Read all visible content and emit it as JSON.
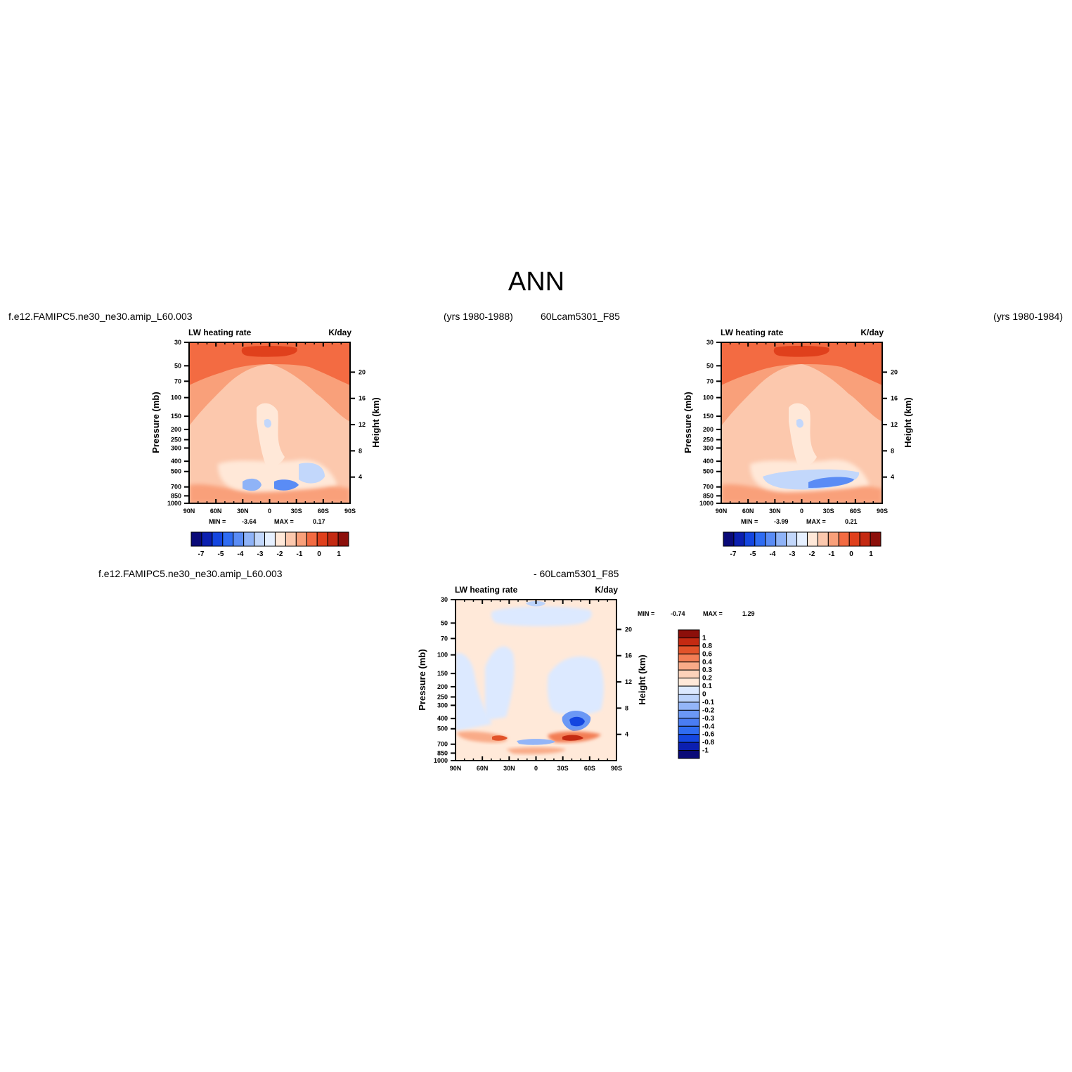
{
  "figure": {
    "season": "ANN",
    "case_titles": {
      "left_name": "f.e12.FAMIPC5.ne30_ne30.amip_L60.003",
      "left_years": "(yrs 1980-1988)",
      "right_name": "60Lcam5301_F85",
      "right_years": "(yrs 1980-1984)",
      "diff_name_left": "f.e12.FAMIPC5.ne30_ne30.amip_L60.003",
      "diff_name_right": "- 60Lcam5301_F85"
    }
  },
  "colors": {
    "abs_levels": [
      "#0a0a78",
      "#0b1fb0",
      "#1446e0",
      "#2f6cf2",
      "#5a8cf5",
      "#8fb3f7",
      "#c2d7fb",
      "#e6f0ff",
      "#ffe8d8",
      "#fcc8ad",
      "#f9a07a",
      "#f36b42",
      "#e0401c",
      "#c42a12",
      "#8c0f0a"
    ],
    "diff_levels": [
      "#0a0a78",
      "#0b1fb0",
      "#1446e0",
      "#2f6cf2",
      "#4a7df3",
      "#6b98f5",
      "#93b5f8",
      "#bcd3fb",
      "#dce9ff",
      "#ffe9d9",
      "#fcd2ba",
      "#f9ab88",
      "#f37e55",
      "#e2532a",
      "#c42a12",
      "#8c0f0a"
    ]
  },
  "chart_data": [
    {
      "type": "heatmap",
      "panel": "model",
      "title": "LW heating rate",
      "units": "K/day",
      "xlabel": "",
      "ylabel": "Pressure (mb)",
      "ylabel_right": "Height (km)",
      "x_ticks": [
        "90N",
        "60N",
        "30N",
        "0",
        "30S",
        "60S",
        "90S"
      ],
      "y_ticks": [
        30,
        50,
        70,
        100,
        150,
        200,
        250,
        300,
        400,
        500,
        700,
        850,
        1000
      ],
      "y_ticks_right": [
        20,
        16,
        12,
        8,
        4
      ],
      "y_scale": "log",
      "ylim": [
        1000,
        30
      ],
      "min_label": "MIN =",
      "min_value": "-3.64",
      "max_label": "MAX =",
      "max_value": "0.17",
      "colorbar_labels": [
        "-7",
        "-5",
        "-4",
        "-3",
        "-2",
        "-1",
        "0",
        "1"
      ]
    },
    {
      "type": "heatmap",
      "panel": "control",
      "title": "LW heating rate",
      "units": "K/day",
      "xlabel": "",
      "ylabel": "Pressure (mb)",
      "ylabel_right": "Height (km)",
      "x_ticks": [
        "90N",
        "60N",
        "30N",
        "0",
        "30S",
        "60S",
        "90S"
      ],
      "y_ticks": [
        30,
        50,
        70,
        100,
        150,
        200,
        250,
        300,
        400,
        500,
        700,
        850,
        1000
      ],
      "y_ticks_right": [
        20,
        16,
        12,
        8,
        4
      ],
      "y_scale": "log",
      "ylim": [
        1000,
        30
      ],
      "min_label": "MIN =",
      "min_value": "-3.99",
      "max_label": "MAX =",
      "max_value": "0.21",
      "colorbar_labels": [
        "-7",
        "-5",
        "-4",
        "-3",
        "-2",
        "-1",
        "0",
        "1"
      ]
    },
    {
      "type": "heatmap",
      "panel": "difference",
      "title": "LW heating rate",
      "units": "K/day",
      "xlabel": "",
      "ylabel": "Pressure (mb)",
      "ylabel_right": "Height (km)",
      "x_ticks": [
        "90N",
        "60N",
        "30N",
        "0",
        "30S",
        "60S",
        "90S"
      ],
      "y_ticks": [
        30,
        50,
        70,
        100,
        150,
        200,
        250,
        300,
        400,
        500,
        700,
        850,
        1000
      ],
      "y_ticks_right": [
        20,
        16,
        12,
        8,
        4
      ],
      "y_scale": "log",
      "ylim": [
        1000,
        30
      ],
      "min_label": "MIN =",
      "min_value": "-0.74",
      "max_label": "MAX =",
      "max_value": "1.29",
      "colorbar_labels": [
        "1",
        "0.8",
        "0.6",
        "0.4",
        "0.3",
        "0.2",
        "0.1",
        "0",
        "-0.1",
        "-0.2",
        "-0.3",
        "-0.4",
        "-0.6",
        "-0.8",
        "-1"
      ]
    }
  ]
}
